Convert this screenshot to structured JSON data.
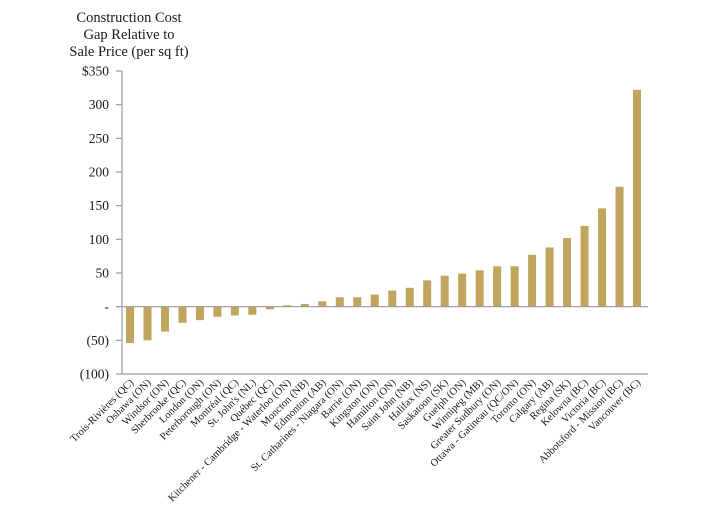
{
  "chart_data": {
    "type": "bar",
    "title": "",
    "ylabel": "Construction Cost Gap Relative to Sale Price (per sq ft)",
    "ylabel_lines": [
      "Construction Cost",
      "Gap Relative to",
      "Sale Price (per sq ft)"
    ],
    "xlabel": "",
    "ylim": [
      -100,
      350
    ],
    "yticks": [
      350,
      300,
      250,
      200,
      150,
      100,
      50,
      0,
      -50,
      -100
    ],
    "ytick_labels": [
      "$350",
      "300",
      "250",
      "200",
      "150",
      "100",
      "50",
      "-",
      "(50)",
      "(100)"
    ],
    "grid": false,
    "legend": "none",
    "bar_color": "#c1a45d",
    "axis_color": "#9a9a9a",
    "categories": [
      "Trois-Rivières (QC)",
      "Oshawa (ON)",
      "Windsor (ON)",
      "Sherbrooke (QC)",
      "London (ON)",
      "Peterborough (ON)",
      "Montréal (QC)",
      "St. John's (NL)",
      "Québec (QC)",
      "Kitchener - Cambridge - Waterloo (ON)",
      "Moncton (NB)",
      "Edmonton (AB)",
      "St. Catharines - Niagara (ON)",
      "Barrie (ON)",
      "Kingston (ON)",
      "Hamilton (ON)",
      "Saint John (NB)",
      "Halifax (NS)",
      "Saskatoon (SK)",
      "Guelph (ON)",
      "Winnipeg (MB)",
      "Greater Sudbury (ON)",
      "Ottawa - Gatineau (QC/ON)",
      "Toronto (ON)",
      "Calgary (AB)",
      "Regina (SK)",
      "Kelowna (BC)",
      "Victoria (BC)",
      "Abbotsford - Mission (BC)",
      "Vancouver (BC)"
    ],
    "values": [
      -54,
      -50,
      -37,
      -24,
      -20,
      -15,
      -13,
      -12,
      -4,
      2,
      4,
      8,
      14,
      14,
      18,
      24,
      28,
      39,
      46,
      49,
      54,
      60,
      60,
      77,
      88,
      102,
      120,
      146,
      178,
      322
    ]
  }
}
